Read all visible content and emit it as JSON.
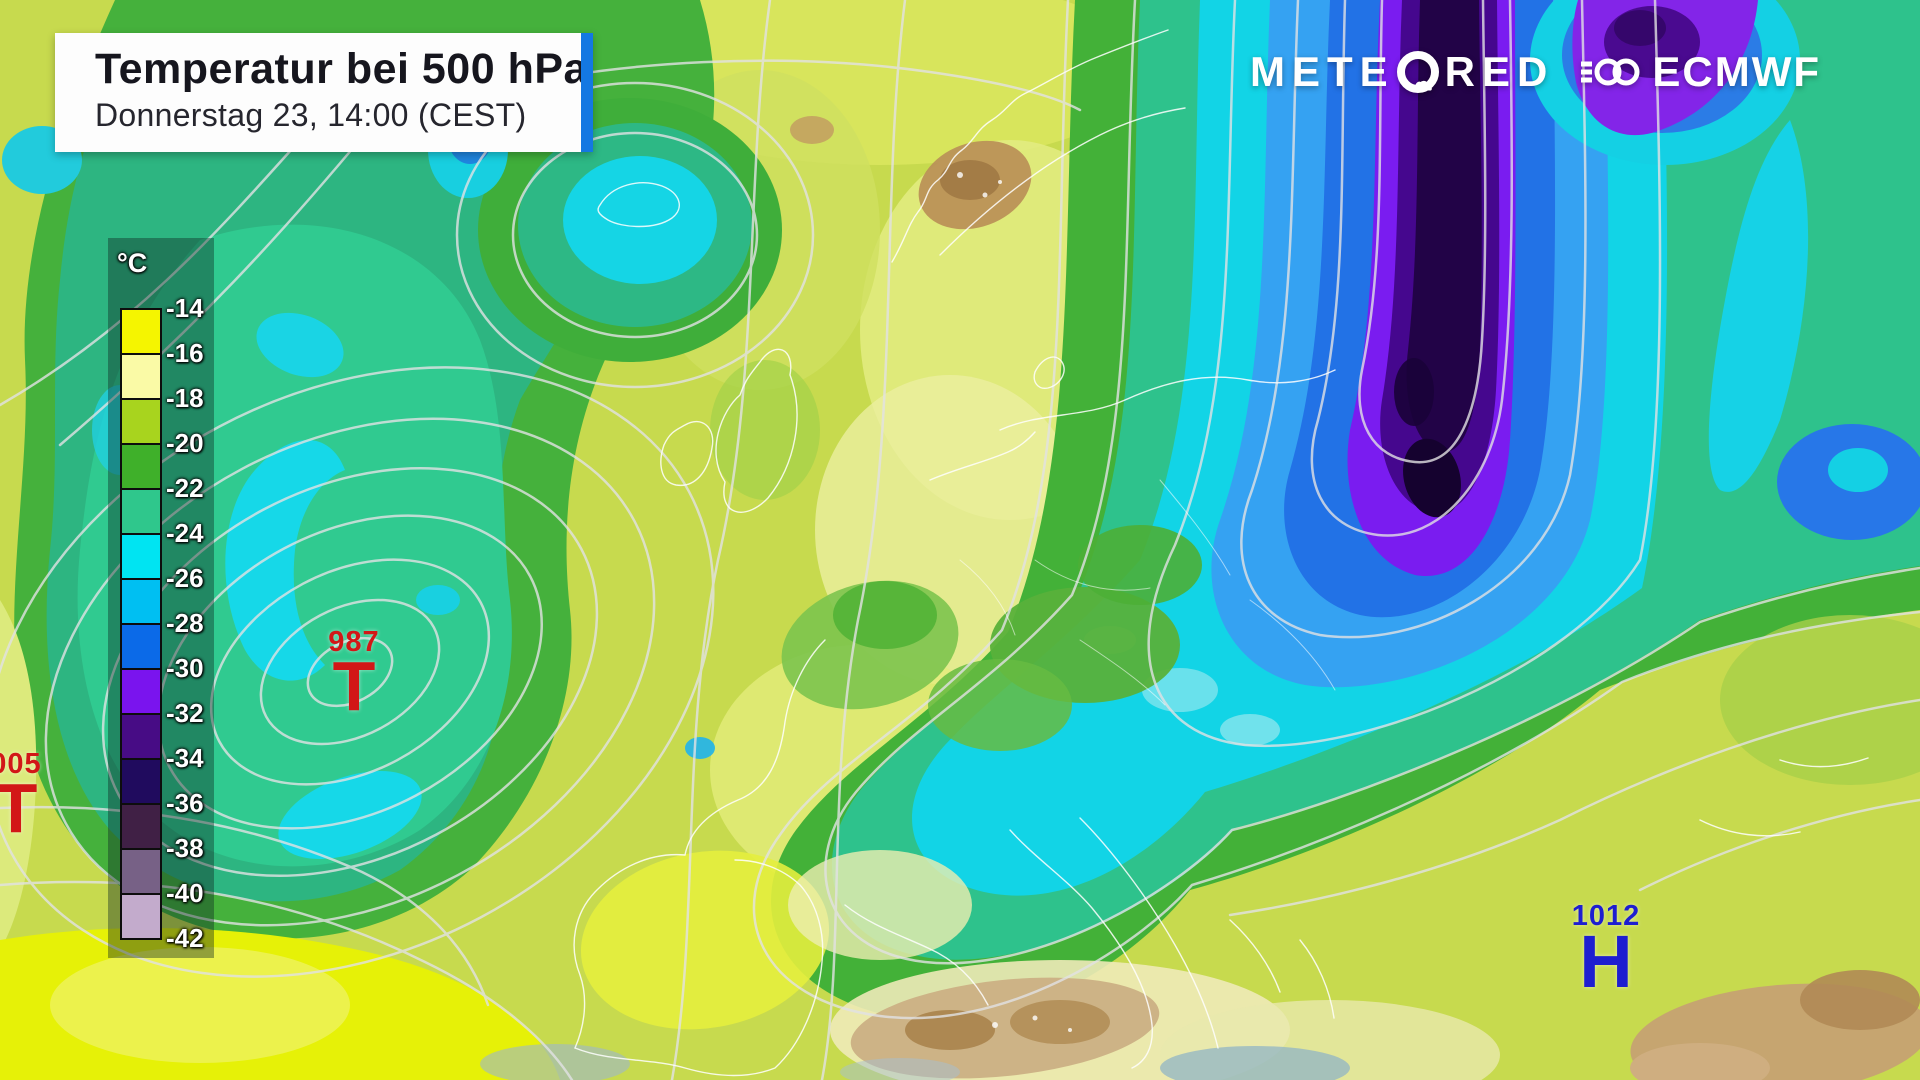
{
  "header": {
    "title": "Temperatur bei 500 hPa",
    "subtitle": "Donnerstag 23, 14:00 (CEST)",
    "accent_color": "#1478e2"
  },
  "branding": {
    "meteored_pre": "METE",
    "meteored_post": "RED",
    "ecmwf": "ECMWF"
  },
  "legend": {
    "unit": "°C",
    "boundary_labels": [
      "-14",
      "-16",
      "-18",
      "-20",
      "-22",
      "-24",
      "-26",
      "-28",
      "-30",
      "-32",
      "-34",
      "-36",
      "-38",
      "-40",
      "-42"
    ],
    "swatch_colors": [
      "#f5f500",
      "#fafaa6",
      "#a8d41e",
      "#3fb02a",
      "#2fc78c",
      "#00e4f2",
      "#00bff2",
      "#0b6ae8",
      "#7a14ee",
      "#470c85",
      "#200b5e",
      "#402045",
      "#776186",
      "#c3abcc"
    ]
  },
  "pressure_markers": [
    {
      "id": "low-987",
      "value": "987",
      "letter": "T",
      "color": "#d21717"
    },
    {
      "id": "low-1005",
      "value": "005",
      "letter": "T",
      "color": "#d21717"
    },
    {
      "id": "high-1012",
      "value": "1012",
      "letter": "H",
      "color": "#1e1ed0"
    }
  ]
}
